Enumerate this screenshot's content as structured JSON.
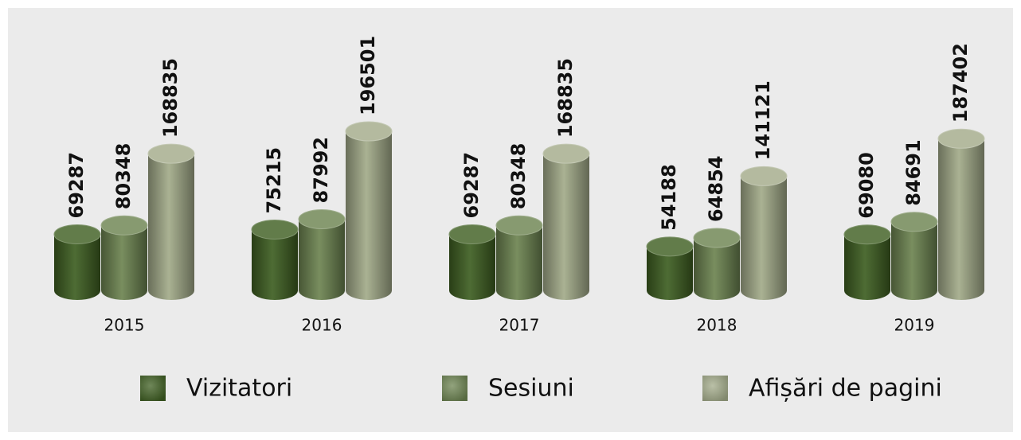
{
  "chart_data": {
    "type": "bar",
    "categories": [
      "2015",
      "2016",
      "2017",
      "2018",
      "2019"
    ],
    "series": [
      {
        "name": "Vizitatori",
        "color": "#3f5f22",
        "values": [
          69287,
          75215,
          69287,
          54188,
          69080
        ]
      },
      {
        "name": "Sesiuni",
        "color": "#6d8451",
        "values": [
          80348,
          87992,
          80348,
          64854,
          84691
        ]
      },
      {
        "name": "Afișări de pagini",
        "color": "#a3ab8a",
        "values": [
          168835,
          196501,
          168835,
          141121,
          187402
        ]
      }
    ],
    "legend": "bottom"
  }
}
